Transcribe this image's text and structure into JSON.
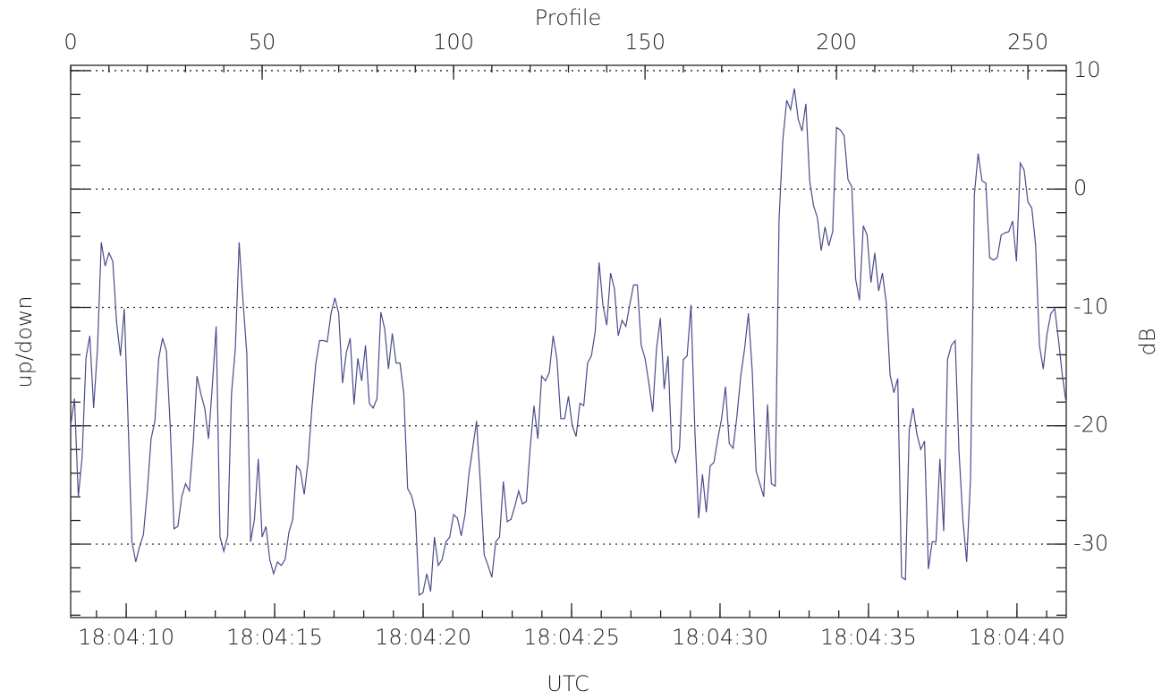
{
  "chart_data": {
    "type": "line",
    "x_label": "Profile",
    "x2_label": "UTC",
    "y_label": "up/down",
    "y2_label": "dB",
    "xlim": [
      0,
      260
    ],
    "xticks": [
      0,
      50,
      100,
      150,
      200,
      250
    ],
    "x2lim": [
      8.13,
      41.66
    ],
    "x2ticks": [
      {
        "value": 10,
        "label": "18:04:10"
      },
      {
        "value": 15,
        "label": "18:04:15"
      },
      {
        "value": 20,
        "label": "18:04:20"
      },
      {
        "value": 25,
        "label": "18:04:25"
      },
      {
        "value": 30,
        "label": "18:04:30"
      },
      {
        "value": 35,
        "label": "18:04:35"
      },
      {
        "value": 40,
        "label": "18:04:40"
      }
    ],
    "y2lim": [
      -36.2,
      10.45
    ],
    "y2ticks": [
      -30,
      -20,
      -10,
      0,
      10
    ],
    "grid": true,
    "x": [
      0,
      1,
      2,
      3,
      4,
      5,
      6,
      7,
      8,
      9,
      10,
      11,
      12,
      13,
      14,
      15,
      16,
      17,
      18,
      19,
      20,
      21,
      22,
      23,
      24,
      25,
      26,
      27,
      28,
      29,
      30,
      31,
      32,
      33,
      34,
      35,
      36,
      37,
      38,
      39,
      40,
      41,
      42,
      43,
      44,
      45,
      46,
      47,
      48,
      49,
      50,
      51,
      52,
      53,
      54,
      55,
      56,
      57,
      58,
      59,
      60,
      61,
      62,
      63,
      64,
      65,
      66,
      67,
      68,
      69,
      70,
      71,
      72,
      73,
      74,
      75,
      76,
      77,
      78,
      79,
      80,
      81,
      82,
      83,
      84,
      85,
      86,
      87,
      88,
      89,
      90,
      91,
      92,
      93,
      94,
      95,
      96,
      97,
      98,
      99,
      100,
      101,
      102,
      103,
      104,
      105,
      106,
      107,
      108,
      109,
      110,
      111,
      112,
      113,
      114,
      115,
      116,
      117,
      118,
      119,
      120,
      121,
      122,
      123,
      124,
      125,
      126,
      127,
      128,
      129,
      130,
      131,
      132,
      133,
      134,
      135,
      136,
      137,
      138,
      139,
      140,
      141,
      142,
      143,
      144,
      145,
      146,
      147,
      148,
      149,
      150,
      151,
      152,
      153,
      154,
      155,
      156,
      157,
      158,
      159,
      160,
      161,
      162,
      163,
      164,
      165,
      166,
      167,
      168,
      169,
      170,
      171,
      172,
      173,
      174,
      175,
      176,
      177,
      178,
      179,
      180,
      181,
      182,
      183,
      184,
      185,
      186,
      187,
      188,
      189,
      190,
      191,
      192,
      193,
      194,
      195,
      196,
      197,
      198,
      199,
      200,
      201,
      202,
      203,
      204,
      205,
      206,
      207,
      208,
      209,
      210,
      211,
      212,
      213,
      214,
      215,
      216,
      217,
      218,
      219,
      220,
      221,
      222,
      223,
      224,
      225,
      226,
      227,
      228,
      229,
      230,
      231,
      232,
      233,
      234,
      235,
      236,
      237,
      238,
      239,
      240,
      241,
      242,
      243,
      244,
      245,
      246,
      247,
      248,
      249,
      250,
      251,
      252,
      253,
      254,
      255,
      256,
      257,
      258,
      259,
      260
    ],
    "series": [
      {
        "color": "#4b4b8c",
        "axis": "y2",
        "values": [
          -20,
          -17.7,
          -26,
          -22.6,
          -14.3,
          -12.4,
          -18.5,
          -13.5,
          -4.5,
          -6.5,
          -5.4,
          -6.1,
          -11.3,
          -14.1,
          -10.1,
          -19.6,
          -29.8,
          -31.5,
          -30.2,
          -29.2,
          -25.6,
          -21.1,
          -19.6,
          -14.3,
          -12.6,
          -13.7,
          -20,
          -28.7,
          -28.5,
          -26,
          -24.9,
          -25.5,
          -21.5,
          -15.8,
          -17.3,
          -18.5,
          -21.1,
          -16.6,
          -11.6,
          -29.4,
          -30.6,
          -29.3,
          -17.3,
          -13.5,
          -4.5,
          -9.4,
          -13.9,
          -29.8,
          -27.9,
          -22.8,
          -29.4,
          -28.5,
          -31.3,
          -32.5,
          -31.5,
          -31.8,
          -31.3,
          -29,
          -27.9,
          -23.4,
          -23.8,
          -25.8,
          -23,
          -18.5,
          -14.8,
          -12.8,
          -12.8,
          -12.9,
          -10.5,
          -9.2,
          -10.5,
          -16.4,
          -13.8,
          -12.6,
          -18.2,
          -14.3,
          -16.2,
          -13.2,
          -18.1,
          -18.5,
          -17.7,
          -10.4,
          -11.8,
          -15.2,
          -12.2,
          -14.7,
          -14.7,
          -17.3,
          -25.3,
          -25.9,
          -27.2,
          -34.3,
          -34.1,
          -32.5,
          -34,
          -29.4,
          -31.8,
          -31.3,
          -29.8,
          -29.4,
          -27.5,
          -27.8,
          -29.3,
          -27.5,
          -24.1,
          -21.9,
          -19.6,
          -24.9,
          -30.9,
          -31.8,
          -32.8,
          -29.8,
          -29.4,
          -24.7,
          -28.1,
          -27.9,
          -26.8,
          -25.5,
          -26.6,
          -26.4,
          -21.9,
          -18.3,
          -21.1,
          -15.8,
          -16.2,
          -15.5,
          -12.4,
          -14.4,
          -19.4,
          -19.4,
          -17.5,
          -20,
          -20.9,
          -18.1,
          -18.3,
          -14.7,
          -14.1,
          -12,
          -6.2,
          -9.8,
          -11.5,
          -7.1,
          -8.4,
          -12.4,
          -11.1,
          -11.6,
          -9.8,
          -8.1,
          -8.1,
          -13.2,
          -14.3,
          -16.4,
          -18.8,
          -13.5,
          -10.9,
          -16.9,
          -14.1,
          -22.2,
          -23.1,
          -21.9,
          -14.4,
          -14.1,
          -9.8,
          -20.3,
          -27.8,
          -24.1,
          -27.3,
          -23.4,
          -23.1,
          -21.1,
          -19.4,
          -16.7,
          -21.5,
          -21.9,
          -19.2,
          -15.8,
          -13.5,
          -10.5,
          -15.4,
          -23.8,
          -24.9,
          -26,
          -18.2,
          -24.9,
          -25.1,
          -2.6,
          4.2,
          7.5,
          6.7,
          8.5,
          5.9,
          4.9,
          7.2,
          0.7,
          -1.4,
          -2.4,
          -5.2,
          -3.2,
          -4.8,
          -3.6,
          5.2,
          5,
          4.5,
          0.8,
          0.2,
          -7.6,
          -9.4,
          -3.1,
          -3.9,
          -7.9,
          -5.4,
          -8.6,
          -7.1,
          -9.6,
          -15.7,
          -17.2,
          -16,
          -32.8,
          -33,
          -20.3,
          -18.5,
          -20.7,
          -22,
          -21.3,
          -32.1,
          -29.8,
          -29.8,
          -22.8,
          -28.9,
          -14.4,
          -13.2,
          -12.8,
          -22.2,
          -27.9,
          -31.5,
          -24.5,
          -0.5,
          3,
          0.7,
          0.5,
          -5.8,
          -6,
          -5.8,
          -3.9,
          -3.7,
          -3.6,
          -2.7,
          -6.1,
          2.2,
          1.6,
          -1.1,
          -1.6,
          -4.7,
          -13.2,
          -15.2,
          -12.2,
          -10.5,
          -10.1,
          -12.8,
          -15.8,
          -18.1
        ]
      }
    ]
  }
}
